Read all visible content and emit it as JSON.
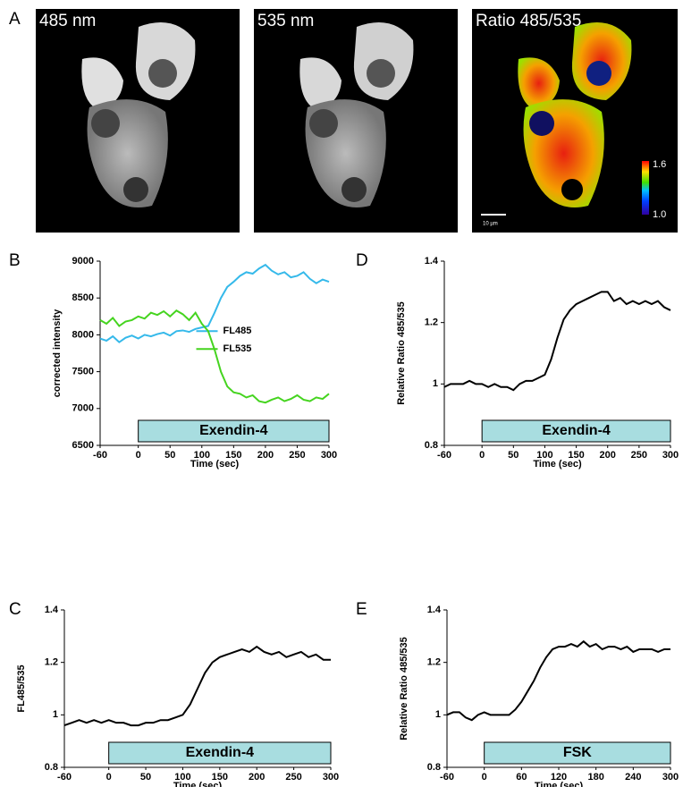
{
  "panel_a": {
    "label": "A",
    "images": [
      {
        "title": "485 nm"
      },
      {
        "title": "535 nm"
      },
      {
        "title": "Ratio 485/535",
        "colorbar_max": "1.6",
        "colorbar_min": "1.0",
        "scale_bar": "10 µm"
      }
    ]
  },
  "chart_data": [
    {
      "type": "line",
      "panel": "B",
      "y_label": "corrected intensity",
      "x_label": "Time (sec)",
      "x": [
        -60,
        -50,
        -40,
        -30,
        -20,
        -10,
        0,
        10,
        20,
        30,
        40,
        50,
        60,
        70,
        80,
        90,
        100,
        110,
        120,
        130,
        140,
        150,
        160,
        170,
        180,
        190,
        200,
        210,
        220,
        230,
        240,
        250,
        260,
        270,
        280,
        290,
        300
      ],
      "series": [
        {
          "name": "FL485",
          "color": "#35b9ea",
          "values": [
            7950,
            7920,
            7980,
            7900,
            7960,
            7990,
            7950,
            8000,
            7980,
            8010,
            8030,
            7990,
            8050,
            8060,
            8040,
            8080,
            8100,
            8120,
            8300,
            8500,
            8650,
            8720,
            8800,
            8850,
            8830,
            8900,
            8950,
            8870,
            8820,
            8850,
            8780,
            8800,
            8850,
            8760,
            8700,
            8750,
            8720
          ]
        },
        {
          "name": "FL535",
          "color": "#45d41f",
          "values": [
            8200,
            8150,
            8230,
            8120,
            8180,
            8200,
            8250,
            8220,
            8300,
            8270,
            8320,
            8250,
            8330,
            8280,
            8200,
            8300,
            8150,
            8050,
            7800,
            7500,
            7300,
            7220,
            7200,
            7150,
            7180,
            7100,
            7080,
            7120,
            7150,
            7100,
            7130,
            7180,
            7120,
            7100,
            7150,
            7130,
            7200
          ]
        }
      ],
      "xlim": [
        -60,
        300
      ],
      "xticks": [
        -60,
        0,
        50,
        100,
        150,
        200,
        250,
        300
      ],
      "ylim": [
        6500,
        9000
      ],
      "yticks": [
        6500,
        7000,
        7500,
        8000,
        8500,
        9000
      ],
      "stimulus": {
        "label": "Exendin-4",
        "start": 0,
        "end": 300
      },
      "legend": "center-right"
    },
    {
      "type": "line",
      "panel": "D",
      "y_label": "Relative Ratio 485/535",
      "x_label": "Time (sec)",
      "x": [
        -60,
        -50,
        -40,
        -30,
        -20,
        -10,
        0,
        10,
        20,
        30,
        40,
        50,
        60,
        70,
        80,
        90,
        100,
        110,
        120,
        130,
        140,
        150,
        160,
        170,
        180,
        190,
        200,
        210,
        220,
        230,
        240,
        250,
        260,
        270,
        280,
        290,
        300
      ],
      "series": [
        {
          "color": "#000000",
          "values": [
            0.99,
            1.0,
            1.0,
            1.0,
            1.01,
            1.0,
            1.0,
            0.99,
            1.0,
            0.99,
            0.99,
            0.98,
            1.0,
            1.01,
            1.01,
            1.02,
            1.03,
            1.08,
            1.15,
            1.21,
            1.24,
            1.26,
            1.27,
            1.28,
            1.29,
            1.3,
            1.3,
            1.27,
            1.28,
            1.26,
            1.27,
            1.26,
            1.27,
            1.26,
            1.27,
            1.25,
            1.24
          ]
        }
      ],
      "xlim": [
        -60,
        300
      ],
      "xticks": [
        -60,
        0,
        50,
        100,
        150,
        200,
        250,
        300
      ],
      "ylim": [
        0.8,
        1.4
      ],
      "yticks": [
        0.8,
        1,
        1.2,
        1.4
      ],
      "stimulus": {
        "label": "Exendin-4",
        "start": 0,
        "end": 300
      }
    },
    {
      "type": "line",
      "panel": "C",
      "y_label": "FL485/535",
      "x_label": "Time (sec)",
      "x": [
        -60,
        -50,
        -40,
        -30,
        -20,
        -10,
        0,
        10,
        20,
        30,
        40,
        50,
        60,
        70,
        80,
        90,
        100,
        110,
        120,
        130,
        140,
        150,
        160,
        170,
        180,
        190,
        200,
        210,
        220,
        230,
        240,
        250,
        260,
        270,
        280,
        290,
        300
      ],
      "series": [
        {
          "color": "#000000",
          "values": [
            0.96,
            0.97,
            0.98,
            0.97,
            0.98,
            0.97,
            0.98,
            0.97,
            0.97,
            0.96,
            0.96,
            0.97,
            0.97,
            0.98,
            0.98,
            0.99,
            1.0,
            1.04,
            1.1,
            1.16,
            1.2,
            1.22,
            1.23,
            1.24,
            1.25,
            1.24,
            1.26,
            1.24,
            1.23,
            1.24,
            1.22,
            1.23,
            1.24,
            1.22,
            1.23,
            1.21,
            1.21
          ]
        }
      ],
      "xlim": [
        -60,
        300
      ],
      "xticks": [
        -60,
        0,
        50,
        100,
        150,
        200,
        250,
        300
      ],
      "ylim": [
        0.8,
        1.4
      ],
      "yticks": [
        0.8,
        1,
        1.2,
        1.4
      ],
      "stimulus": {
        "label": "Exendin-4",
        "start": 0,
        "end": 300
      }
    },
    {
      "type": "line",
      "panel": "E",
      "y_label": "Relative Ratio 485/535",
      "x_label": "Time (sec)",
      "x": [
        -60,
        -50,
        -40,
        -30,
        -20,
        -10,
        0,
        10,
        20,
        30,
        40,
        50,
        60,
        70,
        80,
        90,
        100,
        110,
        120,
        130,
        140,
        150,
        160,
        170,
        180,
        190,
        200,
        210,
        220,
        230,
        240,
        250,
        260,
        270,
        280,
        290,
        300
      ],
      "series": [
        {
          "color": "#000000",
          "values": [
            1.0,
            1.01,
            1.01,
            0.99,
            0.98,
            1.0,
            1.01,
            1.0,
            1.0,
            1.0,
            1.0,
            1.02,
            1.05,
            1.09,
            1.13,
            1.18,
            1.22,
            1.25,
            1.26,
            1.26,
            1.27,
            1.26,
            1.28,
            1.26,
            1.27,
            1.25,
            1.26,
            1.26,
            1.25,
            1.26,
            1.24,
            1.25,
            1.25,
            1.25,
            1.24,
            1.25,
            1.25
          ]
        }
      ],
      "xlim": [
        -60,
        300
      ],
      "xticks": [
        -60,
        0,
        60,
        120,
        180,
        240,
        300
      ],
      "ylim": [
        0.8,
        1.4
      ],
      "yticks": [
        0.8,
        1,
        1.2,
        1.4
      ],
      "stimulus": {
        "label": "FSK",
        "start": 0,
        "end": 300
      }
    }
  ]
}
